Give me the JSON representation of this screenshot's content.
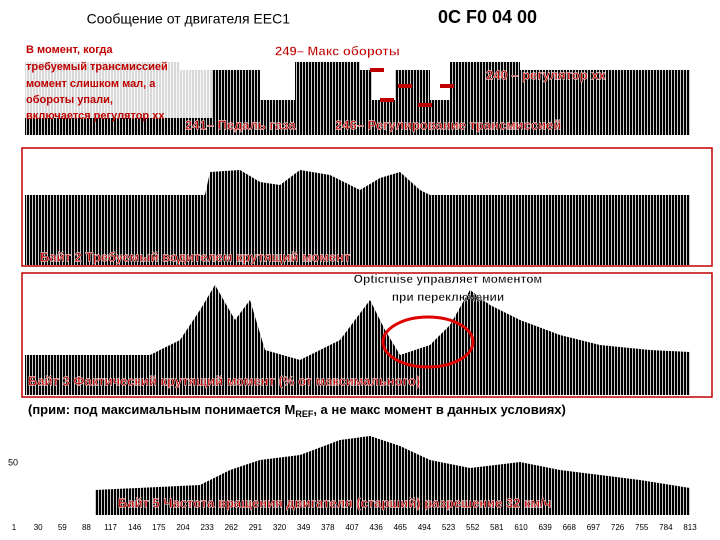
{
  "header": {
    "title": "Сообщение от двигателя EEC1",
    "code": "0C F0 04 00"
  },
  "panel1": {
    "note": [
      "В момент, когда",
      "требуемый трансмиссией",
      "момент слишком мал, а",
      "обороты упали,",
      "включается регулятор хх"
    ],
    "labels": [
      "249– Макс обороты",
      "240 – регулятор хх",
      "241– Педаль газа",
      "246– Регулирование трансмиссией"
    ]
  },
  "panel2": {
    "label": "Байт 2 Требуемый водителем  крутящий момент"
  },
  "panel3": {
    "callout": [
      "Opticruise управляет моментом",
      "при переключении"
    ],
    "label": "Байт 3 Фактический крутящий момент (% от максимального)"
  },
  "remark": {
    "before": "(прим: под максимальным понимается M",
    "sub": "REF",
    "after": ", а не макс момент в данных условиях)"
  },
  "panel4": {
    "ytick": "50",
    "label": "Байт 5 Частота вращения двигателя (старший) разрешение 32 км/ч",
    "xlabels": [
      "1",
      "30",
      "59",
      "88",
      "117",
      "146",
      "175",
      "204",
      "233",
      "262",
      "291",
      "320",
      "349",
      "378",
      "407",
      "436",
      "465",
      "494",
      "523",
      "552",
      "581",
      "610",
      "639",
      "668",
      "697",
      "726",
      "755",
      "784",
      "813"
    ]
  }
}
